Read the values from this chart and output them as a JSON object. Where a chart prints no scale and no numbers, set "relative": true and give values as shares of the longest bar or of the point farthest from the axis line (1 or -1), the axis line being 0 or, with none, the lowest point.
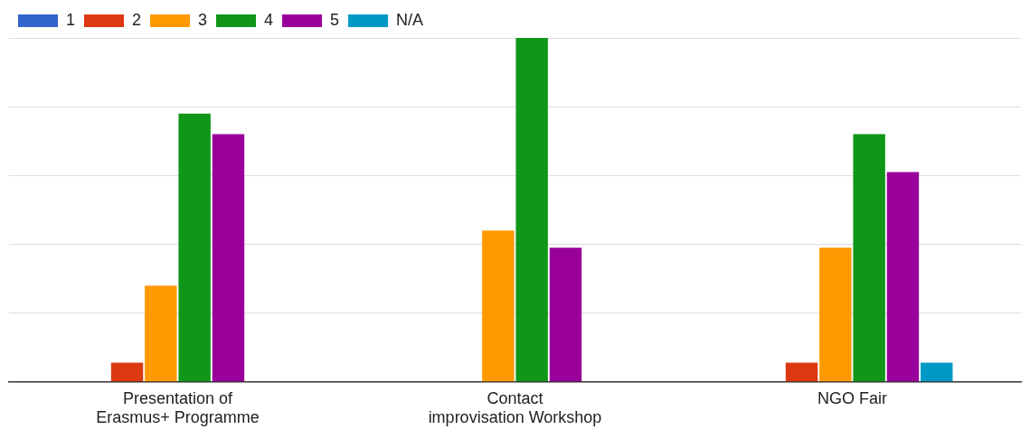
{
  "chart_data": {
    "type": "bar",
    "relative": true,
    "categories": [
      "Presentation of Erasmus+ Programme",
      "Contact improvisation Workshop",
      "NGO Fair"
    ],
    "series": [
      {
        "name": "1",
        "color": "#3366cc",
        "values": [
          0,
          0,
          0
        ]
      },
      {
        "name": "2",
        "color": "#dc3912",
        "values": [
          0.056,
          0,
          0.056
        ]
      },
      {
        "name": "3",
        "color": "#ff9900",
        "values": [
          0.28,
          0.44,
          0.39
        ]
      },
      {
        "name": "4",
        "color": "#109618",
        "values": [
          0.78,
          1,
          0.72
        ]
      },
      {
        "name": "5",
        "color": "#990099",
        "values": [
          0.72,
          0.39,
          0.61
        ]
      },
      {
        "name": "N/A",
        "color": "#0099c6",
        "values": [
          0,
          0,
          0.056
        ]
      }
    ],
    "grid": "y",
    "legend": "top left"
  }
}
